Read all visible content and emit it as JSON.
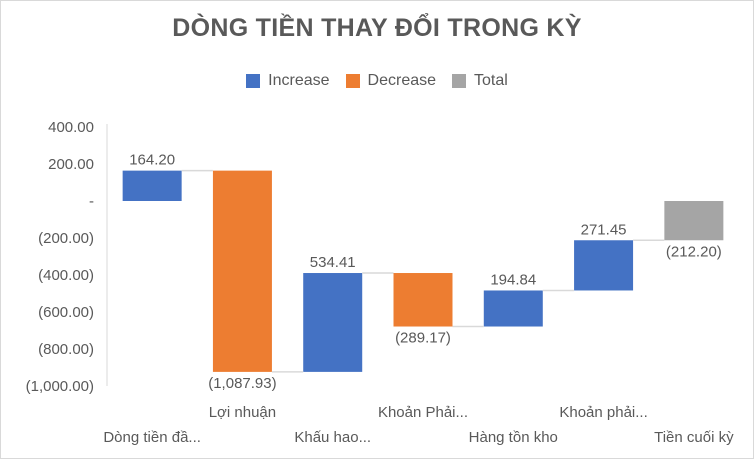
{
  "chart_data": {
    "type": "waterfall",
    "title": "DÒNG TIỀN THAY ĐỔI TRONG KỲ",
    "legend": [
      {
        "label": "Increase",
        "color": "#4472C4"
      },
      {
        "label": "Decrease",
        "color": "#ED7D31"
      },
      {
        "label": "Total",
        "color": "#A5A5A5"
      }
    ],
    "legend_position": "top",
    "categories": [
      "Dòng tiền đầ...",
      "Lợi nhuận",
      "Khấu hao...",
      "Khoản Phải...",
      "Hàng tồn kho",
      "Khoản phải...",
      "Tiền cuối kỳ"
    ],
    "values": [
      164.2,
      -1087.93,
      534.41,
      -289.17,
      194.84,
      271.45,
      -212.2
    ],
    "kinds": [
      "increase",
      "decrease",
      "increase",
      "decrease",
      "increase",
      "increase",
      "total"
    ],
    "data_labels": [
      "164.20",
      "(1,087.93)",
      "534.41",
      "(289.17)",
      "194.84",
      "271.45",
      "(212.20)"
    ],
    "ylim": [
      -1000,
      400
    ],
    "yticks": [
      400,
      200,
      0,
      -200,
      -400,
      -600,
      -800,
      -1000
    ],
    "ytick_labels": [
      "400.00",
      "200.00",
      "-",
      "(200.00)",
      "(400.00)",
      "(600.00)",
      "(800.00)",
      "(1,000.00)"
    ],
    "grid": false,
    "xlabel": "",
    "ylabel": ""
  }
}
